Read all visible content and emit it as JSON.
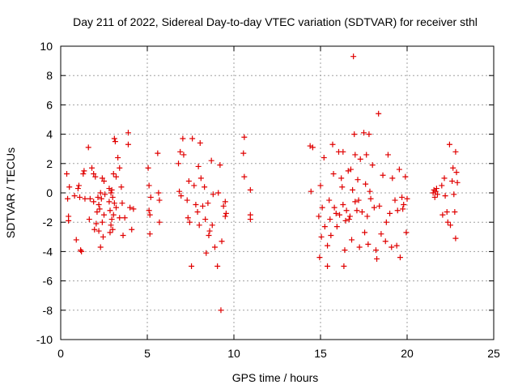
{
  "colors": {
    "series": "#e00000",
    "grid": "#a0a0a0",
    "axis": "#000000"
  },
  "chart_data": {
    "type": "scatter",
    "title": "Day 211 of 2022, Sidereal Day-to-day VTEC variation (SDTVAR) for receiver sthl",
    "xlabel": "GPS time / hours",
    "ylabel": "SDTVAR / TECUs",
    "xlim": [
      0,
      25
    ],
    "ylim": [
      -10,
      10
    ],
    "xticks": [
      0,
      5,
      10,
      15,
      20,
      25
    ],
    "yticks": [
      -10,
      -8,
      -6,
      -4,
      -2,
      0,
      2,
      4,
      6,
      8,
      10
    ],
    "grid": true,
    "marker": "plus",
    "series": [
      {
        "name": "SDTVAR",
        "points": [
          [
            0.35,
            1.3
          ],
          [
            0.4,
            -0.4
          ],
          [
            0.45,
            -1.6
          ],
          [
            0.45,
            -1.9
          ],
          [
            0.5,
            0.4
          ],
          [
            0.8,
            -0.2
          ],
          [
            0.9,
            -3.2
          ],
          [
            1.0,
            0.3
          ],
          [
            1.05,
            0.5
          ],
          [
            1.1,
            -0.3
          ],
          [
            1.15,
            -3.9
          ],
          [
            1.2,
            -4.0
          ],
          [
            1.3,
            1.3
          ],
          [
            1.35,
            1.5
          ],
          [
            1.4,
            -0.4
          ],
          [
            1.6,
            3.1
          ],
          [
            1.65,
            -1.8
          ],
          [
            1.7,
            -0.4
          ],
          [
            1.8,
            1.7
          ],
          [
            1.9,
            1.3
          ],
          [
            1.9,
            -0.6
          ],
          [
            1.95,
            -2.5
          ],
          [
            2.0,
            1.1
          ],
          [
            2.05,
            -2.1
          ],
          [
            2.1,
            -1.3
          ],
          [
            2.15,
            -0.3
          ],
          [
            2.2,
            -0.8
          ],
          [
            2.2,
            -2.6
          ],
          [
            2.25,
            -1.1
          ],
          [
            2.3,
            -3.7
          ],
          [
            2.3,
            0.0
          ],
          [
            2.35,
            -0.4
          ],
          [
            2.4,
            -2.0
          ],
          [
            2.4,
            1.0
          ],
          [
            2.45,
            -3.0
          ],
          [
            2.5,
            0.8
          ],
          [
            2.5,
            -1.5
          ],
          [
            2.55,
            -0.1
          ],
          [
            2.8,
            0.3
          ],
          [
            2.8,
            -0.6
          ],
          [
            2.85,
            -2.7
          ],
          [
            2.85,
            -1.2
          ],
          [
            2.9,
            0.0
          ],
          [
            2.9,
            -2.2
          ],
          [
            2.95,
            -1.8
          ],
          [
            2.95,
            0.2
          ],
          [
            3.0,
            -0.3
          ],
          [
            3.0,
            -2.5
          ],
          [
            3.05,
            1.3
          ],
          [
            3.05,
            -1.5
          ],
          [
            3.1,
            -0.7
          ],
          [
            3.1,
            3.7
          ],
          [
            3.15,
            3.5
          ],
          [
            3.2,
            1.1
          ],
          [
            3.2,
            -1.0
          ],
          [
            3.3,
            2.4
          ],
          [
            3.4,
            1.7
          ],
          [
            3.4,
            -1.7
          ],
          [
            3.5,
            0.4
          ],
          [
            3.55,
            -0.7
          ],
          [
            3.6,
            -2.9
          ],
          [
            3.7,
            -1.7
          ],
          [
            3.9,
            4.1
          ],
          [
            3.9,
            3.3
          ],
          [
            4.0,
            -1.0
          ],
          [
            4.1,
            -2.5
          ],
          [
            4.2,
            -1.1
          ],
          [
            5.05,
            1.7
          ],
          [
            5.1,
            0.5
          ],
          [
            5.1,
            -1.2
          ],
          [
            5.15,
            -1.5
          ],
          [
            5.15,
            -2.8
          ],
          [
            5.2,
            -0.3
          ],
          [
            5.6,
            2.7
          ],
          [
            5.65,
            0.0
          ],
          [
            5.7,
            -0.5
          ],
          [
            5.7,
            -2.0
          ],
          [
            6.8,
            2.0
          ],
          [
            6.85,
            0.1
          ],
          [
            6.9,
            2.8
          ],
          [
            6.95,
            -0.2
          ],
          [
            7.05,
            3.7
          ],
          [
            7.1,
            2.6
          ],
          [
            7.3,
            -0.5
          ],
          [
            7.35,
            -1.7
          ],
          [
            7.4,
            0.8
          ],
          [
            7.45,
            -2.0
          ],
          [
            7.55,
            -5.0
          ],
          [
            7.6,
            3.7
          ],
          [
            7.7,
            0.5
          ],
          [
            7.8,
            -0.8
          ],
          [
            7.9,
            -1.3
          ],
          [
            7.95,
            1.8
          ],
          [
            8.0,
            -2.2
          ],
          [
            8.05,
            3.4
          ],
          [
            8.1,
            1.0
          ],
          [
            8.2,
            -0.9
          ],
          [
            8.3,
            0.4
          ],
          [
            8.35,
            -1.8
          ],
          [
            8.4,
            -4.1
          ],
          [
            8.5,
            -0.7
          ],
          [
            8.55,
            -2.9
          ],
          [
            8.6,
            -2.6
          ],
          [
            8.7,
            2.2
          ],
          [
            8.75,
            -2.2
          ],
          [
            8.8,
            -0.1
          ],
          [
            8.9,
            -3.7
          ],
          [
            9.05,
            -5.0
          ],
          [
            9.1,
            0.0
          ],
          [
            9.2,
            1.9
          ],
          [
            9.25,
            -8.0
          ],
          [
            9.3,
            -3.3
          ],
          [
            9.4,
            -0.9
          ],
          [
            9.5,
            -0.6
          ],
          [
            9.5,
            -1.6
          ],
          [
            9.55,
            -1.4
          ],
          [
            10.55,
            2.7
          ],
          [
            10.6,
            1.1
          ],
          [
            10.6,
            3.8
          ],
          [
            10.95,
            0.2
          ],
          [
            10.95,
            -1.8
          ],
          [
            10.95,
            -1.5
          ],
          [
            14.4,
            3.2
          ],
          [
            14.45,
            0.1
          ],
          [
            14.55,
            3.1
          ],
          [
            14.9,
            -1.6
          ],
          [
            14.95,
            -4.4
          ],
          [
            15.0,
            0.5
          ],
          [
            15.05,
            -3.0
          ],
          [
            15.1,
            -1.0
          ],
          [
            15.2,
            2.4
          ],
          [
            15.25,
            -2.3
          ],
          [
            15.4,
            -3.6
          ],
          [
            15.4,
            -5.0
          ],
          [
            15.5,
            -0.5
          ],
          [
            15.55,
            -1.8
          ],
          [
            15.6,
            -2.9
          ],
          [
            15.7,
            3.3
          ],
          [
            15.75,
            1.3
          ],
          [
            15.8,
            -1.0
          ],
          [
            15.9,
            -1.4
          ],
          [
            15.95,
            -2.3
          ],
          [
            16.05,
            2.8
          ],
          [
            16.1,
            -1.5
          ],
          [
            16.2,
            1.0
          ],
          [
            16.25,
            0.4
          ],
          [
            16.3,
            2.8
          ],
          [
            16.3,
            -0.8
          ],
          [
            16.35,
            -5.0
          ],
          [
            16.4,
            -3.9
          ],
          [
            16.45,
            -1.9
          ],
          [
            16.5,
            -1.2
          ],
          [
            16.6,
            1.5
          ],
          [
            16.65,
            -1.8
          ],
          [
            16.7,
            -1.6
          ],
          [
            16.75,
            1.6
          ],
          [
            16.8,
            -3.2
          ],
          [
            16.85,
            0.2
          ],
          [
            16.9,
            9.3
          ],
          [
            16.95,
            4.0
          ],
          [
            17.0,
            2.6
          ],
          [
            17.0,
            -0.6
          ],
          [
            17.1,
            -1.2
          ],
          [
            17.15,
            0.9
          ],
          [
            17.2,
            -0.5
          ],
          [
            17.25,
            -3.7
          ],
          [
            17.3,
            2.3
          ],
          [
            17.4,
            -1.3
          ],
          [
            17.5,
            4.1
          ],
          [
            17.55,
            -2.7
          ],
          [
            17.6,
            0.6
          ],
          [
            17.65,
            2.6
          ],
          [
            17.7,
            -1.6
          ],
          [
            17.75,
            -3.5
          ],
          [
            17.8,
            4.0
          ],
          [
            17.85,
            0.1
          ],
          [
            17.9,
            -0.4
          ],
          [
            18.0,
            1.9
          ],
          [
            18.1,
            -1.0
          ],
          [
            18.2,
            -3.9
          ],
          [
            18.25,
            -4.5
          ],
          [
            18.35,
            5.4
          ],
          [
            18.4,
            -0.9
          ],
          [
            18.5,
            -2.8
          ],
          [
            18.6,
            1.2
          ],
          [
            18.75,
            -3.3
          ],
          [
            18.8,
            -2.0
          ],
          [
            18.9,
            2.6
          ],
          [
            19.0,
            -1.4
          ],
          [
            19.1,
            -3.7
          ],
          [
            19.15,
            1.0
          ],
          [
            19.3,
            -0.5
          ],
          [
            19.4,
            -3.6
          ],
          [
            19.45,
            -1.2
          ],
          [
            19.55,
            1.6
          ],
          [
            19.6,
            -4.4
          ],
          [
            19.7,
            -0.3
          ],
          [
            19.75,
            -1.1
          ],
          [
            19.8,
            -0.8
          ],
          [
            19.9,
            1.1
          ],
          [
            19.95,
            -2.7
          ],
          [
            20.0,
            -0.4
          ],
          [
            21.5,
            0.0
          ],
          [
            21.55,
            0.2
          ],
          [
            21.6,
            -0.3
          ],
          [
            21.65,
            0.1
          ],
          [
            21.7,
            0.3
          ],
          [
            21.75,
            -0.1
          ],
          [
            22.0,
            0.5
          ],
          [
            22.05,
            -1.5
          ],
          [
            22.15,
            1.0
          ],
          [
            22.2,
            -0.2
          ],
          [
            22.3,
            -1.3
          ],
          [
            22.35,
            -2.0
          ],
          [
            22.45,
            3.3
          ],
          [
            22.5,
            -2.2
          ],
          [
            22.6,
            0.8
          ],
          [
            22.65,
            1.7
          ],
          [
            22.7,
            -0.1
          ],
          [
            22.75,
            -1.3
          ],
          [
            22.8,
            2.8
          ],
          [
            22.8,
            -3.1
          ],
          [
            22.85,
            1.4
          ],
          [
            22.9,
            0.7
          ]
        ]
      }
    ]
  }
}
